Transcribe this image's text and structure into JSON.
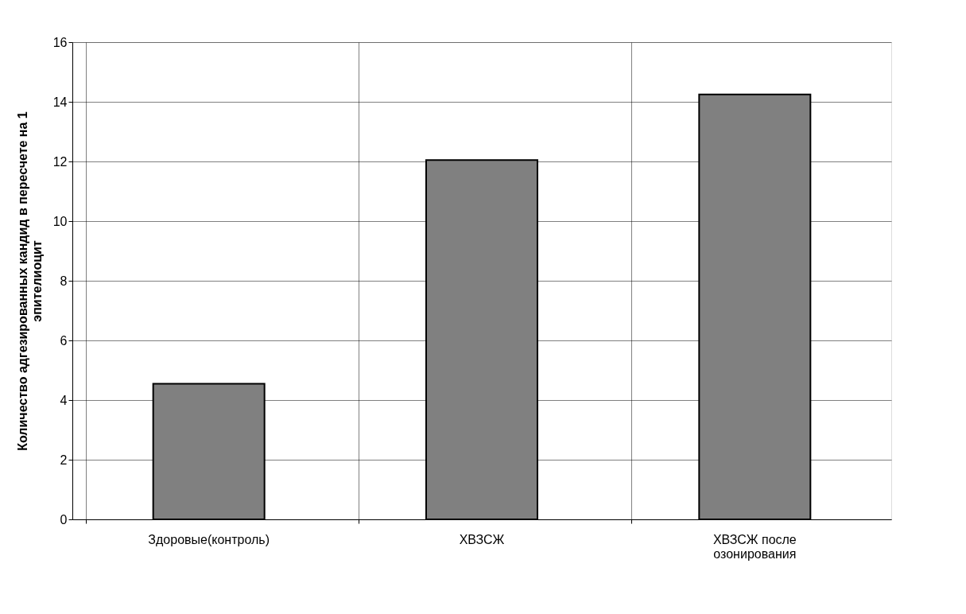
{
  "chart_data": {
    "type": "bar",
    "ylabel": "Количество адгезированных кандид в пересчете на 1 эпителиоцит",
    "categories": [
      "Здоровые(контроль)",
      "ХВЗСЖ",
      "ХВЗСЖ после озонирования"
    ],
    "values": [
      4.55,
      12.05,
      14.25
    ],
    "color": "#808080",
    "ylim": [
      0,
      16
    ],
    "yticks": [
      0,
      2,
      4,
      6,
      8,
      10,
      12,
      14,
      16
    ],
    "grid": true
  }
}
